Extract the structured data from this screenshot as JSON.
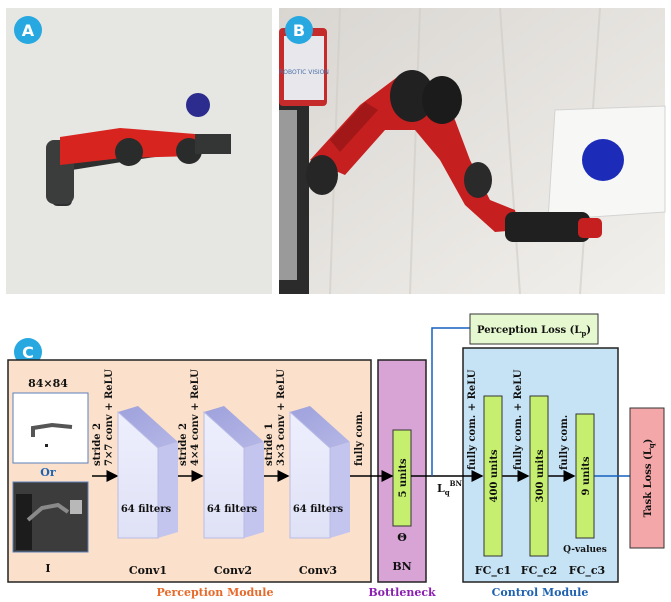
{
  "panels": {
    "a": {
      "badge": "A"
    },
    "b": {
      "badge": "B",
      "robot_screen_text": "ROBOTIC VISION"
    },
    "c": {
      "badge": "C"
    }
  },
  "diagram": {
    "input_size": "84×84",
    "or_label": "Or",
    "i_label": "I",
    "conv_layers": [
      {
        "name": "Conv1",
        "filters": "64 filters",
        "op_line1": "stride 2",
        "op_line2": "7×7 conv + ReLU"
      },
      {
        "name": "Conv2",
        "filters": "64 filters",
        "op_line1": "stride 2",
        "op_line2": "4×4 conv + ReLU"
      },
      {
        "name": "Conv3",
        "filters": "64 filters",
        "op_line1": "stride 1",
        "op_line2": "3×3 conv + ReLU"
      }
    ],
    "fully_com": "fully com.",
    "bottleneck": {
      "units": "5 units",
      "theta": "Θ",
      "short_label": "BN",
      "label": "Bottleneck"
    },
    "lq_bn": {
      "main": "L",
      "sub": "q",
      "sup": "BN"
    },
    "control_layers": [
      {
        "units": "400 units",
        "name": "FC_c1",
        "op": "fully com. + ReLU"
      },
      {
        "units": "300 units",
        "name": "FC_c2",
        "op": "fully com. + ReLU"
      },
      {
        "units": "9 units",
        "name": "FC_c3",
        "op": "fully com."
      }
    ],
    "q_values": "Q-values",
    "perception_loss": {
      "text": "Perception Loss (L",
      "sub": "p",
      "close": ")"
    },
    "task_loss": {
      "text": "Task Loss (L",
      "sub": "q",
      "close": ")"
    },
    "perception_module": "Perception Module",
    "control_module": "Control Module",
    "colors": {
      "perception_bg": "#fbe1cb",
      "bottleneck_bg": "#d8a4d6",
      "control_bg": "#c6e3f5",
      "unit_fill": "#c6ef70",
      "perception_label": "#e86a2a",
      "bottleneck_label": "#8a1fb1",
      "control_label": "#1f62b0",
      "badge": "#27a8e0",
      "loss_green": "#e6f8cf",
      "task_pink": "#f3a7a8",
      "arrow_blue": "#1560bd"
    }
  }
}
